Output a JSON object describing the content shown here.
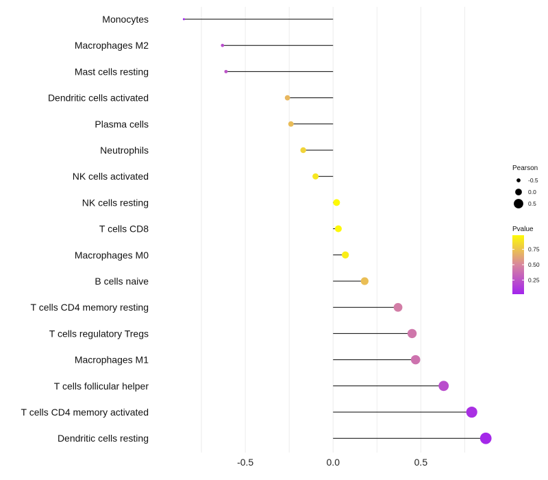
{
  "chart_data": {
    "type": "lollipop",
    "title": "",
    "xlabel": "",
    "ylabel": "",
    "xlim": [
      -1.0,
      0.92
    ],
    "xticks": [
      -0.5,
      0.0,
      0.5
    ],
    "xtick_labels": [
      "-0.5",
      "0.0",
      "0.5"
    ],
    "grid": true,
    "categories": [
      "Monocytes",
      "Macrophages M2",
      "Mast cells resting",
      "Dendritic cells activated",
      "Plasma cells",
      "Neutrophils",
      "NK cells activated",
      "NK cells resting",
      "T cells CD8",
      "Macrophages M0",
      "B cells naive",
      "T cells CD4 memory resting",
      "T cells regulatory  Tregs ",
      "Macrophages M1",
      "T cells follicular helper",
      "T cells CD4 memory activated",
      "Dendritic cells resting"
    ],
    "pearson": [
      -0.85,
      -0.63,
      -0.61,
      -0.26,
      -0.24,
      -0.17,
      -0.1,
      0.02,
      0.03,
      0.07,
      0.18,
      0.37,
      0.45,
      0.47,
      0.63,
      0.79,
      0.87
    ],
    "pvalue": [
      0.02,
      0.22,
      0.25,
      0.7,
      0.72,
      0.82,
      0.9,
      0.98,
      0.97,
      0.93,
      0.73,
      0.45,
      0.42,
      0.4,
      0.22,
      0.08,
      0.04
    ],
    "legend": {
      "position": "right",
      "size_title": "Pearson",
      "size_values": [
        -0.5,
        0.0,
        0.5
      ],
      "size_labels": [
        "-0.5",
        "0.0",
        "0.5"
      ],
      "color_title": "Pvalue",
      "color_ticks": [
        0.75,
        0.5,
        0.25
      ],
      "color_labels": [
        "0.75",
        "0.50",
        "0.25"
      ],
      "color_low": "#a020f0",
      "color_mid": "#d8879e",
      "color_high": "#ffff00"
    }
  }
}
